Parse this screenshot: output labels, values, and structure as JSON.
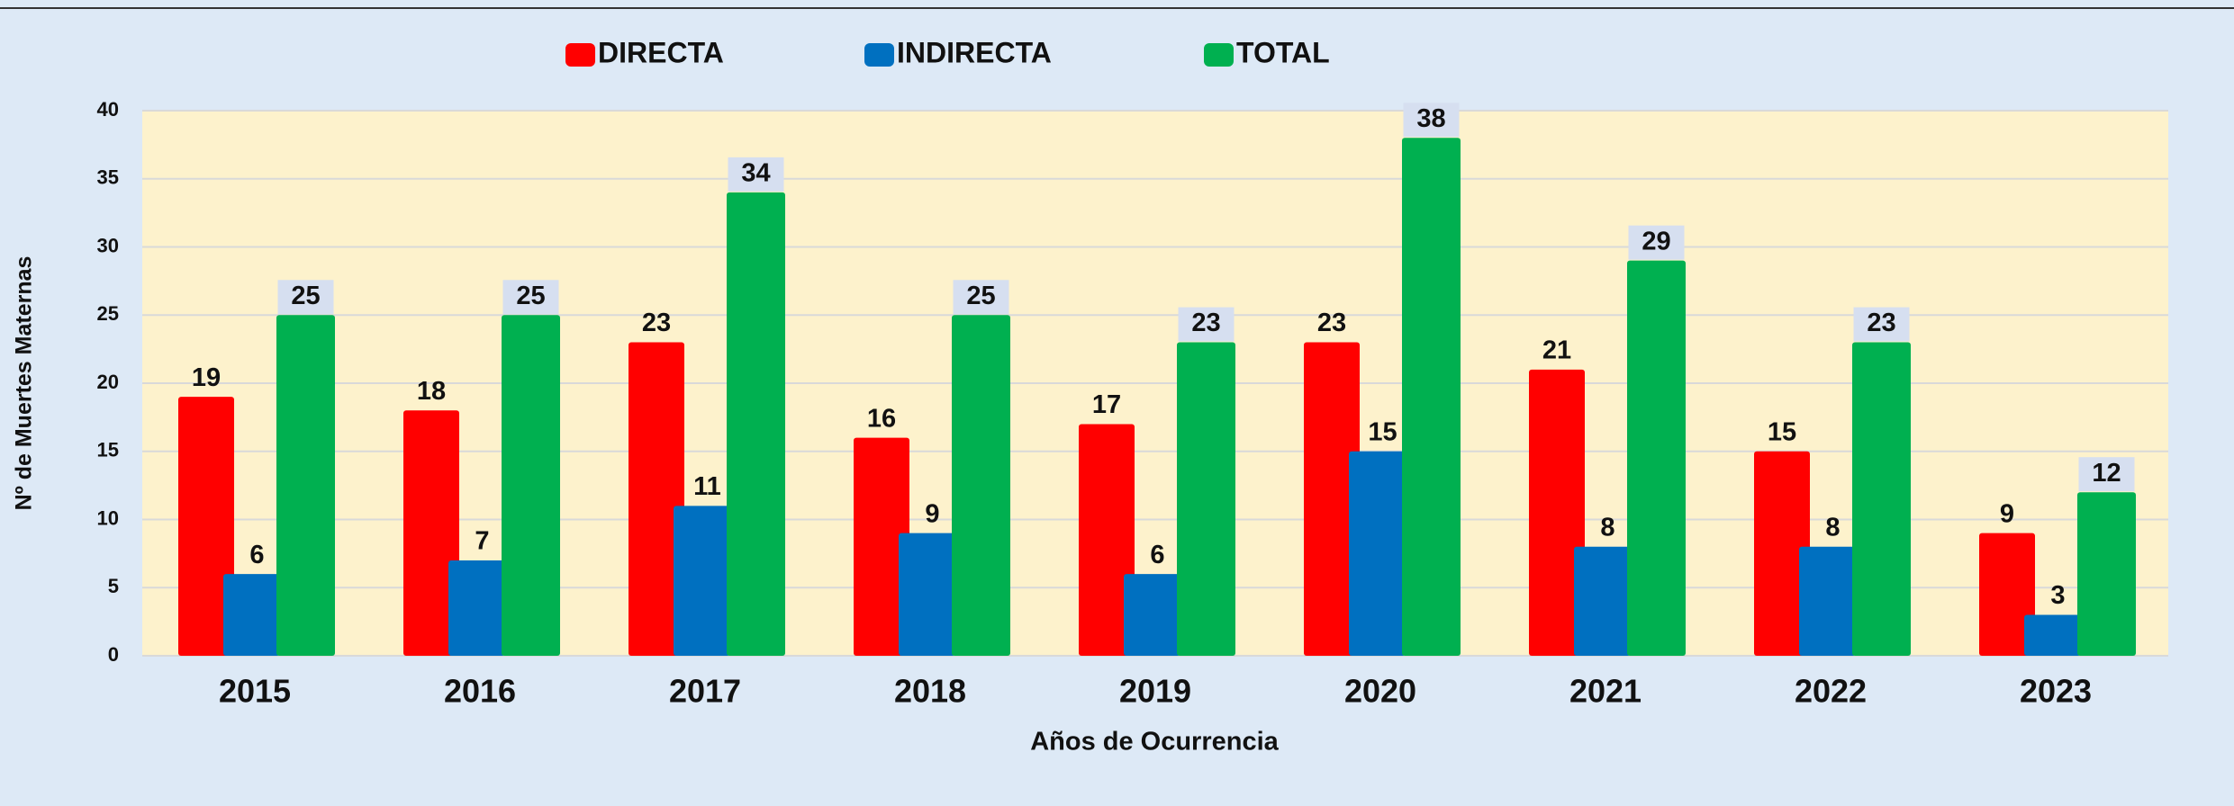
{
  "chart_data": {
    "type": "bar",
    "categories": [
      "2015",
      "2016",
      "2017",
      "2018",
      "2019",
      "2020",
      "2021",
      "2022",
      "2023"
    ],
    "series": [
      {
        "name": "DIRECTA",
        "color": "#ff0000",
        "values": [
          19,
          18,
          23,
          16,
          17,
          23,
          21,
          15,
          9
        ]
      },
      {
        "name": "INDIRECTA",
        "color": "#0070c0",
        "values": [
          6,
          7,
          11,
          9,
          6,
          15,
          8,
          8,
          3
        ]
      },
      {
        "name": "TOTAL",
        "color": "#00b050",
        "values": [
          25,
          25,
          34,
          25,
          23,
          38,
          29,
          23,
          12
        ]
      }
    ],
    "x_label": "Años de Ocurrencia",
    "y_label": "Nº de Muertes Maternas",
    "ylim": [
      0,
      40
    ],
    "yticks": [
      0,
      5,
      10,
      15,
      20,
      25,
      30,
      35,
      40
    ],
    "grid": true,
    "legend": "top"
  }
}
